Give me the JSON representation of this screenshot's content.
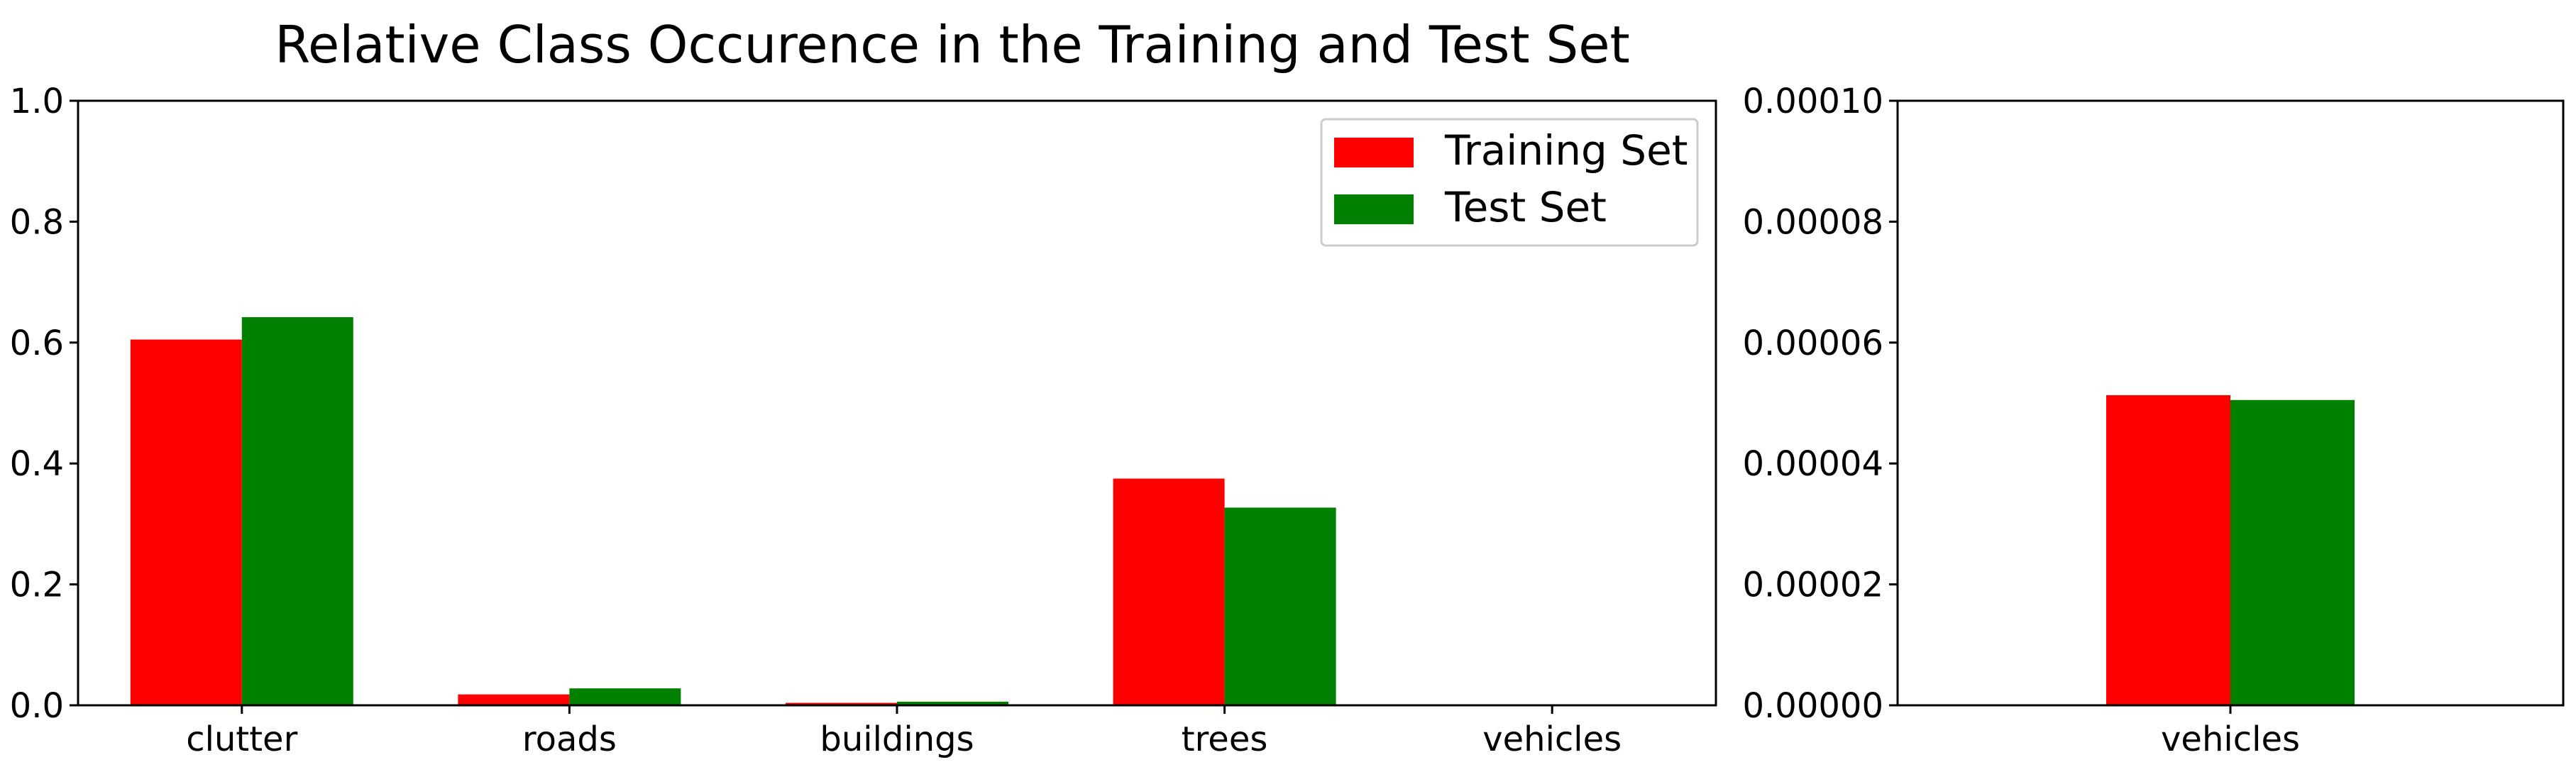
{
  "title": "Relative Class Occurence in the Training and Test Set",
  "colors": {
    "training": "#ff0000",
    "test": "#008000",
    "axis": "#000000",
    "background": "#ffffff"
  },
  "legend": {
    "placement": "top-right",
    "entries": [
      {
        "label": "Training Set",
        "color": "#ff0000"
      },
      {
        "label": "Test Set",
        "color": "#008000"
      }
    ]
  },
  "chart_data": [
    {
      "type": "bar",
      "title": "Relative Class Occurence in the Training and Test Set",
      "categories": [
        "clutter",
        "roads",
        "buildings",
        "trees",
        "vehicles"
      ],
      "series": [
        {
          "name": "Training Set",
          "color": "#ff0000",
          "values": [
            0.605,
            0.018,
            0.004,
            0.375,
            5e-05
          ]
        },
        {
          "name": "Test Set",
          "color": "#008000",
          "values": [
            0.642,
            0.028,
            0.006,
            0.327,
            5e-05
          ]
        }
      ],
      "ylim": [
        0,
        1.0
      ],
      "yticks": [
        "0.0",
        "0.2",
        "0.4",
        "0.6",
        "0.8",
        "1.0"
      ],
      "ytick_values": [
        0,
        0.2,
        0.4,
        0.6,
        0.8,
        1.0
      ],
      "grid": false,
      "legend": "top-right"
    },
    {
      "type": "bar",
      "categories": [
        "vehicles"
      ],
      "series": [
        {
          "name": "Training Set",
          "color": "#ff0000",
          "values": [
            5.13e-05
          ]
        },
        {
          "name": "Test Set",
          "color": "#008000",
          "values": [
            5.05e-05
          ]
        }
      ],
      "ylim": [
        0,
        0.0001
      ],
      "yticks": [
        "0.00000",
        "0.00002",
        "0.00004",
        "0.00006",
        "0.00008",
        "0.00010"
      ],
      "ytick_values": [
        0,
        2e-05,
        4e-05,
        6e-05,
        8e-05,
        0.0001
      ],
      "grid": false
    }
  ]
}
